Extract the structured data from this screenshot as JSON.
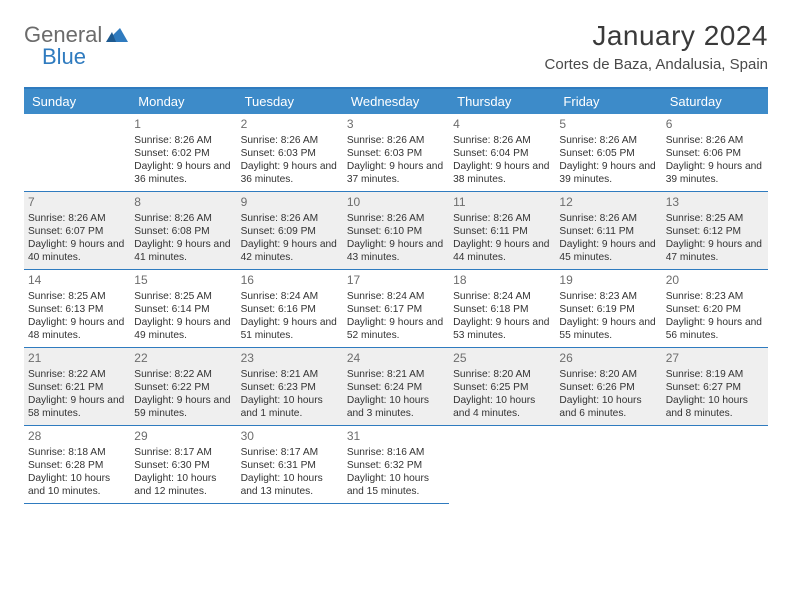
{
  "logo": {
    "word1": "General",
    "word2": "Blue"
  },
  "title": "January 2024",
  "location": "Cortes de Baza, Andalusia, Spain",
  "colors": {
    "header_bg": "#3d8bc9",
    "accent": "#2f7bbf",
    "alt_row_bg": "#efefef",
    "text": "#333333",
    "title_text": "#3a3a3a",
    "daynum_text": "#6d6d6d"
  },
  "dayHeaders": [
    "Sunday",
    "Monday",
    "Tuesday",
    "Wednesday",
    "Thursday",
    "Friday",
    "Saturday"
  ],
  "startOffset": 1,
  "daysInMonth": 31,
  "days": [
    {
      "n": 1,
      "sunrise": "8:26 AM",
      "sunset": "6:02 PM",
      "daylight": "9 hours and 36 minutes."
    },
    {
      "n": 2,
      "sunrise": "8:26 AM",
      "sunset": "6:03 PM",
      "daylight": "9 hours and 36 minutes."
    },
    {
      "n": 3,
      "sunrise": "8:26 AM",
      "sunset": "6:03 PM",
      "daylight": "9 hours and 37 minutes."
    },
    {
      "n": 4,
      "sunrise": "8:26 AM",
      "sunset": "6:04 PM",
      "daylight": "9 hours and 38 minutes."
    },
    {
      "n": 5,
      "sunrise": "8:26 AM",
      "sunset": "6:05 PM",
      "daylight": "9 hours and 39 minutes."
    },
    {
      "n": 6,
      "sunrise": "8:26 AM",
      "sunset": "6:06 PM",
      "daylight": "9 hours and 39 minutes."
    },
    {
      "n": 7,
      "sunrise": "8:26 AM",
      "sunset": "6:07 PM",
      "daylight": "9 hours and 40 minutes."
    },
    {
      "n": 8,
      "sunrise": "8:26 AM",
      "sunset": "6:08 PM",
      "daylight": "9 hours and 41 minutes."
    },
    {
      "n": 9,
      "sunrise": "8:26 AM",
      "sunset": "6:09 PM",
      "daylight": "9 hours and 42 minutes."
    },
    {
      "n": 10,
      "sunrise": "8:26 AM",
      "sunset": "6:10 PM",
      "daylight": "9 hours and 43 minutes."
    },
    {
      "n": 11,
      "sunrise": "8:26 AM",
      "sunset": "6:11 PM",
      "daylight": "9 hours and 44 minutes."
    },
    {
      "n": 12,
      "sunrise": "8:26 AM",
      "sunset": "6:11 PM",
      "daylight": "9 hours and 45 minutes."
    },
    {
      "n": 13,
      "sunrise": "8:25 AM",
      "sunset": "6:12 PM",
      "daylight": "9 hours and 47 minutes."
    },
    {
      "n": 14,
      "sunrise": "8:25 AM",
      "sunset": "6:13 PM",
      "daylight": "9 hours and 48 minutes."
    },
    {
      "n": 15,
      "sunrise": "8:25 AM",
      "sunset": "6:14 PM",
      "daylight": "9 hours and 49 minutes."
    },
    {
      "n": 16,
      "sunrise": "8:24 AM",
      "sunset": "6:16 PM",
      "daylight": "9 hours and 51 minutes."
    },
    {
      "n": 17,
      "sunrise": "8:24 AM",
      "sunset": "6:17 PM",
      "daylight": "9 hours and 52 minutes."
    },
    {
      "n": 18,
      "sunrise": "8:24 AM",
      "sunset": "6:18 PM",
      "daylight": "9 hours and 53 minutes."
    },
    {
      "n": 19,
      "sunrise": "8:23 AM",
      "sunset": "6:19 PM",
      "daylight": "9 hours and 55 minutes."
    },
    {
      "n": 20,
      "sunrise": "8:23 AM",
      "sunset": "6:20 PM",
      "daylight": "9 hours and 56 minutes."
    },
    {
      "n": 21,
      "sunrise": "8:22 AM",
      "sunset": "6:21 PM",
      "daylight": "9 hours and 58 minutes."
    },
    {
      "n": 22,
      "sunrise": "8:22 AM",
      "sunset": "6:22 PM",
      "daylight": "9 hours and 59 minutes."
    },
    {
      "n": 23,
      "sunrise": "8:21 AM",
      "sunset": "6:23 PM",
      "daylight": "10 hours and 1 minute."
    },
    {
      "n": 24,
      "sunrise": "8:21 AM",
      "sunset": "6:24 PM",
      "daylight": "10 hours and 3 minutes."
    },
    {
      "n": 25,
      "sunrise": "8:20 AM",
      "sunset": "6:25 PM",
      "daylight": "10 hours and 4 minutes."
    },
    {
      "n": 26,
      "sunrise": "8:20 AM",
      "sunset": "6:26 PM",
      "daylight": "10 hours and 6 minutes."
    },
    {
      "n": 27,
      "sunrise": "8:19 AM",
      "sunset": "6:27 PM",
      "daylight": "10 hours and 8 minutes."
    },
    {
      "n": 28,
      "sunrise": "8:18 AM",
      "sunset": "6:28 PM",
      "daylight": "10 hours and 10 minutes."
    },
    {
      "n": 29,
      "sunrise": "8:17 AM",
      "sunset": "6:30 PM",
      "daylight": "10 hours and 12 minutes."
    },
    {
      "n": 30,
      "sunrise": "8:17 AM",
      "sunset": "6:31 PM",
      "daylight": "10 hours and 13 minutes."
    },
    {
      "n": 31,
      "sunrise": "8:16 AM",
      "sunset": "6:32 PM",
      "daylight": "10 hours and 15 minutes."
    }
  ],
  "labels": {
    "sunrise": "Sunrise:",
    "sunset": "Sunset:",
    "daylight": "Daylight:"
  }
}
